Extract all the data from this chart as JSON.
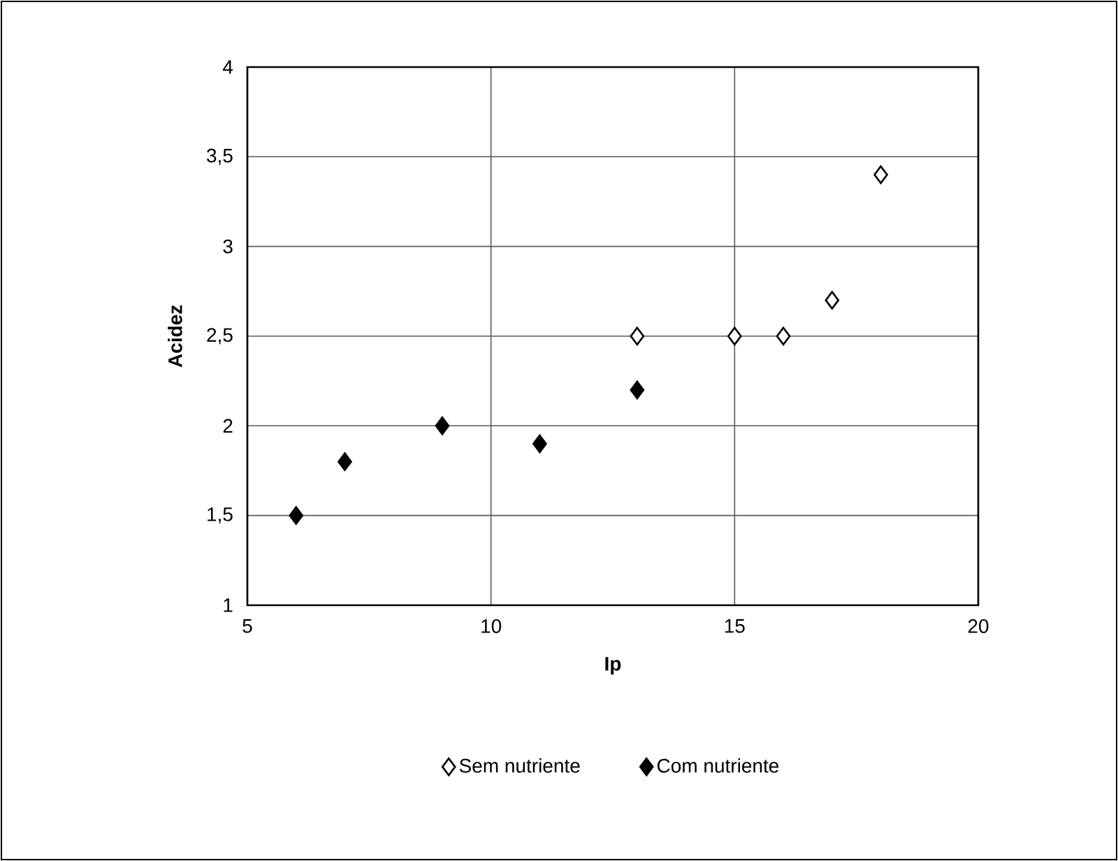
{
  "chart_data": {
    "type": "scatter",
    "xlabel": "Ip",
    "ylabel": "Acidez",
    "xlim": [
      5,
      20
    ],
    "xticks": [
      5,
      10,
      15,
      20
    ],
    "ylim": [
      1,
      4
    ],
    "yticks": [
      1,
      {
        "value": 1.5,
        "label": "1,5"
      },
      2,
      {
        "value": 2.5,
        "label": "2,5"
      },
      3,
      {
        "value": 3.5,
        "label": "3,5"
      },
      4
    ],
    "grid": true,
    "legend": "bottom",
    "marker": "diamond",
    "series": [
      {
        "name": "Sem nutriente",
        "color": "#ffffff",
        "x": [
          13,
          15,
          16,
          17,
          18
        ],
        "values": [
          2.5,
          2.5,
          2.5,
          2.7,
          3.4
        ]
      },
      {
        "name": "Com nutriente",
        "color": "#000000",
        "x": [
          6,
          7,
          9,
          11,
          13
        ],
        "values": [
          1.5,
          1.8,
          2.0,
          1.9,
          2.2
        ]
      }
    ]
  }
}
